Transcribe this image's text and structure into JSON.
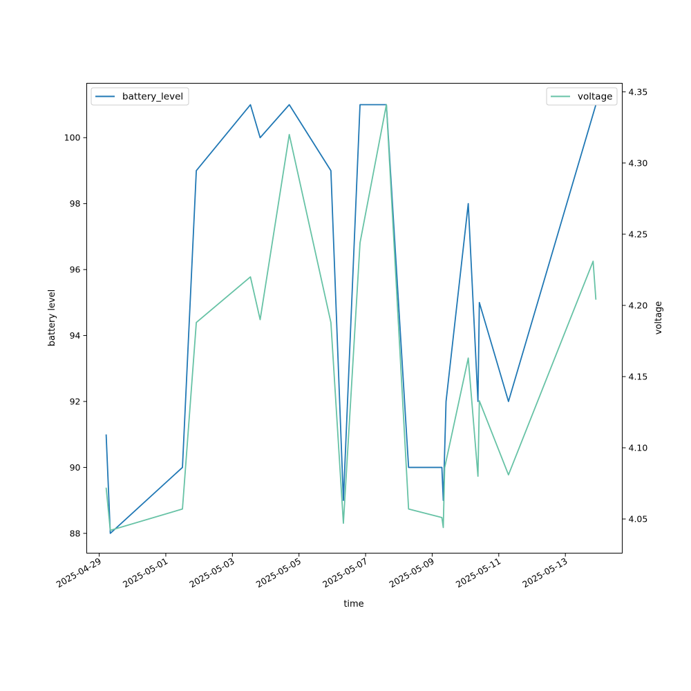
{
  "chart_data": {
    "type": "line",
    "xlabel": "time",
    "ylabel_left": "battery level",
    "ylabel_right": "voltage",
    "x_ticks": [
      "2025-04-29",
      "2025-05-01",
      "2025-05-03",
      "2025-05-05",
      "2025-05-07",
      "2025-05-09",
      "2025-05-11",
      "2025-05-13"
    ],
    "x_range": [
      "2025-04-28 15:00",
      "2025-05-14 17:00"
    ],
    "y_left_ticks": [
      "88",
      "90",
      "92",
      "94",
      "96",
      "98",
      "100"
    ],
    "y_left_range": [
      87.4,
      101.65
    ],
    "y_right_ticks": [
      "4.05",
      "4.10",
      "4.15",
      "4.20",
      "4.25",
      "4.30",
      "4.35"
    ],
    "y_right_range": [
      4.026,
      4.356
    ],
    "grid": false,
    "series": [
      {
        "name": "battery_level",
        "axis": "left",
        "color": "#1f77b4",
        "points": [
          [
            "2025-04-29 05:00",
            91
          ],
          [
            "2025-04-29 08:00",
            88
          ],
          [
            "2025-05-01 12:00",
            90
          ],
          [
            "2025-05-01 22:00",
            99
          ],
          [
            "2025-05-03 13:00",
            101
          ],
          [
            "2025-05-03 20:00",
            100
          ],
          [
            "2025-05-04 17:00",
            101
          ],
          [
            "2025-05-05 23:00",
            99
          ],
          [
            "2025-05-06 08:00",
            89
          ],
          [
            "2025-05-06 20:00",
            101
          ],
          [
            "2025-05-07 15:00",
            101
          ],
          [
            "2025-05-08 07:00",
            90
          ],
          [
            "2025-05-09 07:00",
            90
          ],
          [
            "2025-05-09 08:00",
            89
          ],
          [
            "2025-05-09 10:00",
            92
          ],
          [
            "2025-05-10 02:00",
            98
          ],
          [
            "2025-05-10 09:00",
            92
          ],
          [
            "2025-05-10 10:00",
            95
          ],
          [
            "2025-05-11 07:00",
            92
          ],
          [
            "2025-05-13 22:00",
            101
          ]
        ]
      },
      {
        "name": "voltage",
        "axis": "right",
        "color": "#66c2a5",
        "points": [
          [
            "2025-04-29 05:00",
            4.072
          ],
          [
            "2025-04-29 08:00",
            4.042
          ],
          [
            "2025-05-01 12:00",
            4.057
          ],
          [
            "2025-05-01 22:00",
            4.188
          ],
          [
            "2025-05-03 13:00",
            4.22
          ],
          [
            "2025-05-03 20:00",
            4.19
          ],
          [
            "2025-05-04 17:00",
            4.32
          ],
          [
            "2025-05-05 23:00",
            4.188
          ],
          [
            "2025-05-06 08:00",
            4.047
          ],
          [
            "2025-05-06 20:00",
            4.244
          ],
          [
            "2025-05-07 15:00",
            4.341
          ],
          [
            "2025-05-08 07:00",
            4.057
          ],
          [
            "2025-05-09 07:00",
            4.051
          ],
          [
            "2025-05-09 08:00",
            4.044
          ],
          [
            "2025-05-09 09:00",
            4.086
          ],
          [
            "2025-05-10 02:00",
            4.163
          ],
          [
            "2025-05-10 09:00",
            4.08
          ],
          [
            "2025-05-10 10:00",
            4.133
          ],
          [
            "2025-05-11 07:00",
            4.081
          ],
          [
            "2025-05-13 20:00",
            4.231
          ],
          [
            "2025-05-13 22:00",
            4.204
          ]
        ]
      }
    ],
    "legends": [
      {
        "label": "battery_level",
        "placement": "top-left",
        "color": "#1f77b4"
      },
      {
        "label": "voltage",
        "placement": "top-right",
        "color": "#66c2a5"
      }
    ]
  }
}
